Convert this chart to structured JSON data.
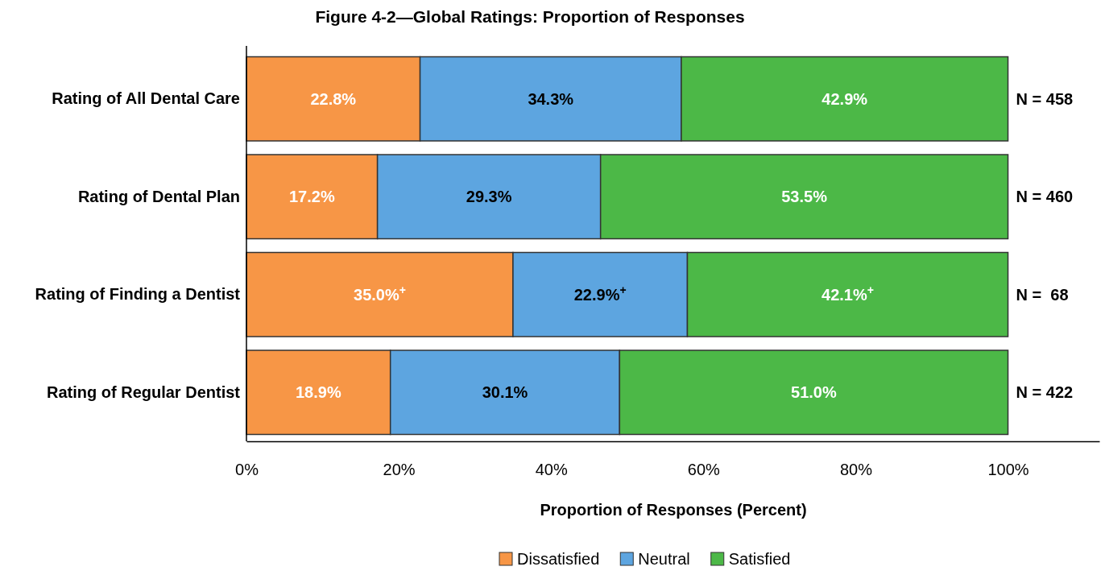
{
  "chart_data": {
    "type": "bar",
    "orientation": "horizontal",
    "stacked": true,
    "title": "Figure 4-2—Global Ratings: Proportion of Responses",
    "xlabel": "Proportion of Responses (Percent)",
    "categories": [
      "Rating of All Dental Care",
      "Rating of Dental Plan",
      "Rating of Finding a Dentist",
      "Rating of Regular Dentist"
    ],
    "series": [
      {
        "name": "Dissatisfied",
        "color": "#f79646",
        "values": [
          22.8,
          17.2,
          35.0,
          18.9
        ],
        "value_labels": [
          "22.8%",
          "17.2%",
          "35.0%$^{+}$",
          "18.9%"
        ]
      },
      {
        "name": "Neutral",
        "color": "#5da5e0",
        "values": [
          34.3,
          29.3,
          22.9,
          30.1
        ],
        "value_labels": [
          "34.3%",
          "29.3%",
          "22.9%$^{+}$",
          "30.1%"
        ]
      },
      {
        "name": "Satisfied",
        "color": "#4cb847",
        "values": [
          42.9,
          53.5,
          42.1,
          51.0
        ],
        "value_labels": [
          "42.9%",
          "53.5%",
          "42.1%$^{+}$",
          "51.0%"
        ]
      }
    ],
    "xlim": [
      0,
      112
    ],
    "xticks": [
      {
        "value": 0,
        "label": "0%"
      },
      {
        "value": 20,
        "label": "20%"
      },
      {
        "value": 40,
        "label": "40%"
      },
      {
        "value": 60,
        "label": "60%"
      },
      {
        "value": 80,
        "label": "80%"
      },
      {
        "value": 100,
        "label": "100%"
      }
    ],
    "grid": false,
    "legend": "bottom",
    "annotations": [
      "N = 458",
      "N = 460",
      "N =  68",
      "N = 422"
    ]
  }
}
